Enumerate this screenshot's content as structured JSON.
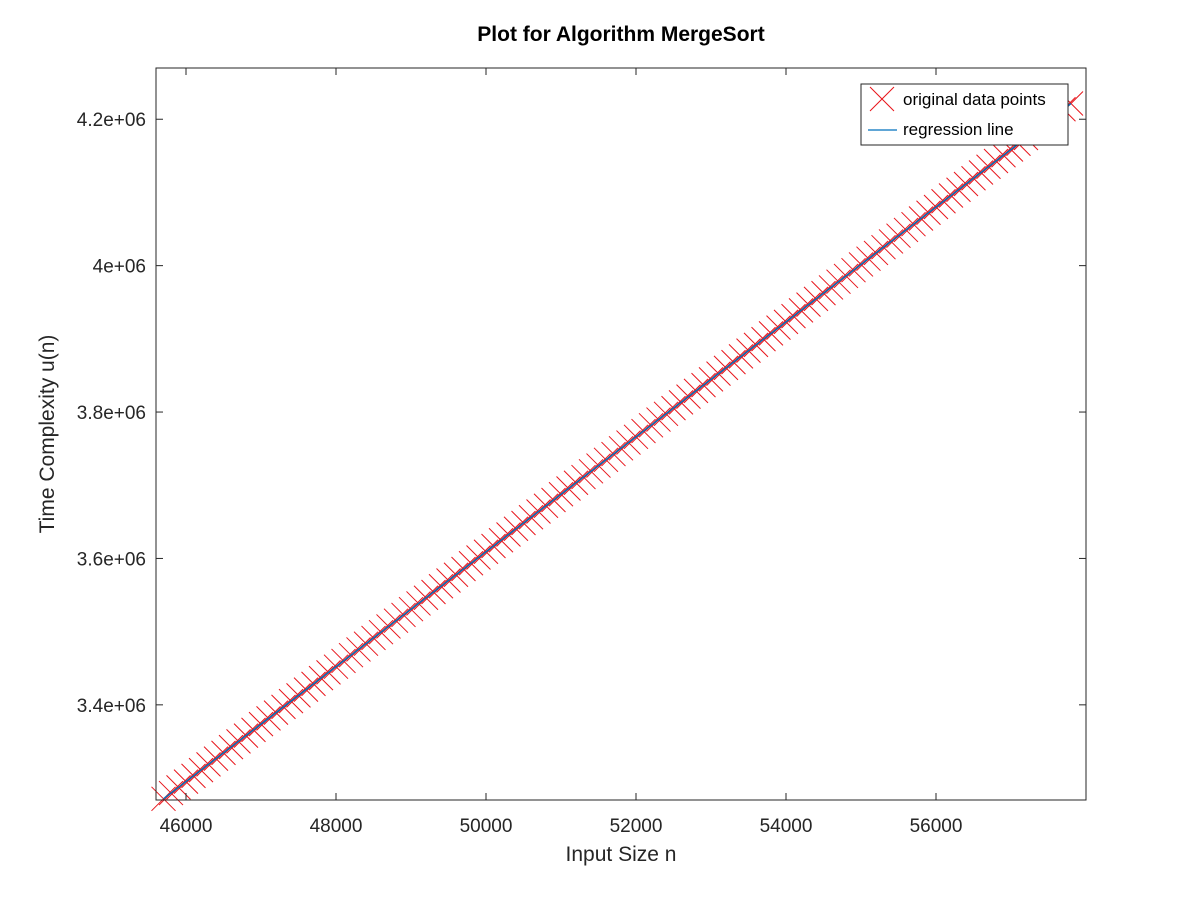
{
  "chart_data": {
    "type": "scatter",
    "title": "Plot for Algorithm MergeSort",
    "xlabel": "Input Size n",
    "ylabel": "Time Complexity u(n)",
    "xlim": [
      45600,
      58000
    ],
    "ylim": [
      3270000,
      4270000
    ],
    "xticks": [
      46000,
      48000,
      50000,
      52000,
      54000,
      56000
    ],
    "xtick_labels": [
      "46000",
      "48000",
      "50000",
      "52000",
      "54000",
      "56000"
    ],
    "yticks": [
      3400000,
      3600000,
      3800000,
      4000000,
      4200000
    ],
    "ytick_labels": [
      "3.4e+06",
      "3.6e+06",
      "3.8e+06",
      "4e+06",
      "4.2e+06"
    ],
    "grid": false,
    "legend_position": "top-right",
    "series": [
      {
        "name": "original data points",
        "kind": "markers",
        "marker": "x",
        "color": "#e8151b",
        "x_start": 45700,
        "x_step": 100,
        "count": 122,
        "y_at_x_start": 3271600,
        "y_slope": 78.5
      },
      {
        "name": "regression line",
        "kind": "line",
        "color": "#0072bd",
        "x": [
          45700,
          57800
        ],
        "y": [
          3271600,
          4221400
        ]
      }
    ]
  }
}
